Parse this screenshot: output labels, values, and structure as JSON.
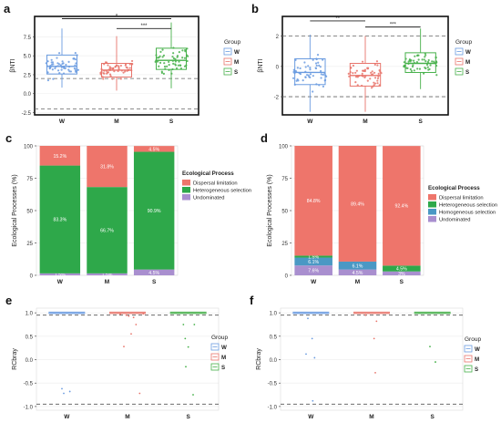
{
  "figure": {
    "title": ""
  },
  "groups": [
    "W",
    "M",
    "S"
  ],
  "colors": {
    "W": "#6a9be0",
    "M": "#e8746b",
    "S": "#46b04a",
    "dispersal": "#ee756b",
    "hetero": "#2ea84a",
    "homo": "#4a98c4",
    "undominated": "#a98fcf",
    "fig_bg": "#ffffff"
  },
  "chart_data": [
    {
      "panel": "a",
      "type": "box",
      "ylabel": "βNTI",
      "ylim": [
        -2.8,
        10.2
      ],
      "yticks": [
        -2.5,
        0.0,
        2.5,
        5.0,
        7.5
      ],
      "ytick_labels": [
        "-2.5",
        "0.0",
        "2.5",
        "5.0",
        "7.5"
      ],
      "categories": [
        "W",
        "M",
        "S"
      ],
      "refs": [
        2,
        -2
      ],
      "legend_title": "Group",
      "stats": [
        {
          "min": 0.8,
          "q1": 2.6,
          "median": 3.6,
          "q3": 5.1,
          "max": 8.6
        },
        {
          "min": 0.4,
          "q1": 2.2,
          "median": 3.1,
          "q3": 4.0,
          "max": 7.6
        },
        {
          "min": 0.7,
          "q1": 3.2,
          "median": 4.4,
          "q3": 6.0,
          "max": 9.4
        }
      ],
      "jitter": {
        "n": 55,
        "spread": [
          1.4,
          1.2,
          1.7
        ]
      },
      "sig": [
        {
          "from": 0,
          "to": 2,
          "label": "*",
          "y": 9.9
        },
        {
          "from": 1,
          "to": 2,
          "label": "***",
          "y": 8.6
        }
      ]
    },
    {
      "panel": "b",
      "type": "box",
      "ylabel": "βNTI",
      "ylim": [
        -3.2,
        3.3
      ],
      "yticks": [
        -2,
        0,
        2
      ],
      "ytick_labels": [
        "-2",
        "0",
        "2"
      ],
      "categories": [
        "W",
        "M",
        "S"
      ],
      "refs": [
        2,
        -2
      ],
      "legend_title": "Group",
      "stats": [
        {
          "min": -3.0,
          "q1": -1.2,
          "median": -0.4,
          "q3": 0.5,
          "max": 2.1
        },
        {
          "min": -3.0,
          "q1": -1.3,
          "median": -0.6,
          "q3": 0.2,
          "max": 2.0
        },
        {
          "min": -1.5,
          "q1": -0.4,
          "median": 0.2,
          "q3": 0.9,
          "max": 2.5
        }
      ],
      "jitter": {
        "n": 55,
        "spread": [
          0.9,
          0.9,
          0.7
        ]
      },
      "sig": [
        {
          "from": 0,
          "to": 1,
          "label": "**",
          "y": 3.0
        },
        {
          "from": 1,
          "to": 2,
          "label": "***",
          "y": 2.6
        }
      ]
    },
    {
      "panel": "c",
      "type": "bar",
      "stacked": true,
      "ylabel": "Ecological Processes (%)",
      "ylim": [
        0,
        100
      ],
      "yticks": [
        0,
        25,
        50,
        75,
        100
      ],
      "ytick_labels": [
        "0",
        "25",
        "50",
        "75",
        "100"
      ],
      "categories": [
        "W",
        "M",
        "S"
      ],
      "legend_title": "Ecological Process",
      "series": [
        {
          "name": "Undominated",
          "values": [
            1.5,
            1.5,
            4.5
          ],
          "labels": [
            "1.5%",
            "1.5%",
            "4.5%"
          ],
          "color_key": "undominated"
        },
        {
          "name": "Heterogeneous selection",
          "values": [
            83.3,
            66.7,
            90.9
          ],
          "labels": [
            "83.3%",
            "66.7%",
            "90.9%"
          ],
          "color_key": "hetero"
        },
        {
          "name": "Dispersal limitation",
          "values": [
            15.2,
            31.8,
            4.5
          ],
          "labels": [
            "15.2%",
            "31.8%",
            "4.5%"
          ],
          "color_key": "dispersal"
        }
      ],
      "legend_order": [
        2,
        1,
        0
      ]
    },
    {
      "panel": "d",
      "type": "bar",
      "stacked": true,
      "ylabel": "Ecological Processes (%)",
      "ylim": [
        0,
        100
      ],
      "yticks": [
        0,
        25,
        50,
        75,
        100
      ],
      "ytick_labels": [
        "0",
        "25",
        "50",
        "75",
        "100"
      ],
      "categories": [
        "W",
        "M",
        "S"
      ],
      "legend_title": "Ecological Process",
      "series": [
        {
          "name": "Undominated",
          "values": [
            7.6,
            4.5,
            3.0
          ],
          "labels": [
            "7.6%",
            "4.5%",
            "3%"
          ],
          "color_key": "undominated"
        },
        {
          "name": "Homogeneous selection",
          "values": [
            6.1,
            6.1,
            0.0
          ],
          "labels": [
            "6.1%",
            "6.1%",
            ""
          ],
          "color_key": "homo"
        },
        {
          "name": "Heterogeneous selection",
          "values": [
            1.5,
            0.0,
            4.5
          ],
          "labels": [
            "1.5%",
            "",
            "4.5%"
          ],
          "color_key": "hetero"
        },
        {
          "name": "Dispersal limitation",
          "values": [
            84.8,
            89.4,
            92.4
          ],
          "labels": [
            "84.8%",
            "89.4%",
            "92.4%"
          ],
          "color_key": "dispersal"
        }
      ],
      "legend_order": [
        3,
        2,
        1,
        0
      ]
    },
    {
      "panel": "e",
      "type": "scatter",
      "ylabel": "RCbray",
      "ylim": [
        -1.08,
        1.1
      ],
      "yticks": [
        -1.0,
        -0.5,
        0.0,
        0.5,
        1.0
      ],
      "ytick_labels": [
        "-1.0",
        "-0.5",
        "0.0",
        "0.5",
        "1.0"
      ],
      "categories": [
        "W",
        "M",
        "S"
      ],
      "refs": [
        0.95,
        -0.95
      ],
      "legend_title": "Group",
      "cluster_y": 1.0,
      "points": [
        [
          [
            -0.08,
            -0.62
          ],
          [
            -0.05,
            -0.72
          ],
          [
            0.05,
            -0.68
          ]
        ],
        [
          [
            -0.12,
            0.97
          ],
          [
            0.02,
            0.93
          ],
          [
            0.1,
            0.9
          ],
          [
            0.14,
            0.75
          ],
          [
            -0.06,
            0.28
          ],
          [
            0.06,
            0.55
          ],
          [
            0.2,
            -0.72
          ],
          [
            0.26,
            0.98
          ],
          [
            -0.02,
            0.95
          ]
        ],
        [
          [
            -0.08,
            0.75
          ],
          [
            0.1,
            0.75
          ],
          [
            -0.05,
            0.45
          ],
          [
            0.0,
            0.27
          ],
          [
            -0.04,
            -0.15
          ],
          [
            0.08,
            -0.75
          ]
        ]
      ]
    },
    {
      "panel": "f",
      "type": "scatter",
      "ylabel": "RCbray",
      "ylim": [
        -1.08,
        1.1
      ],
      "yticks": [
        -1.0,
        -0.5,
        0.0,
        0.5,
        1.0
      ],
      "ytick_labels": [
        "-1.0",
        "-0.5",
        "0.0",
        "0.5",
        "1.0"
      ],
      "categories": [
        "W",
        "M",
        "S"
      ],
      "refs": [
        0.95,
        -0.95
      ],
      "legend_title": "Group",
      "cluster_y": 1.0,
      "points": [
        [
          [
            -0.05,
            0.88
          ],
          [
            0.02,
            0.45
          ],
          [
            -0.08,
            0.12
          ],
          [
            0.06,
            0.04
          ],
          [
            0.03,
            -0.88
          ]
        ],
        [
          [
            -0.1,
            0.95
          ],
          [
            0.08,
            0.82
          ],
          [
            0.04,
            0.45
          ],
          [
            0.06,
            -0.28
          ]
        ],
        [
          [
            -0.04,
            0.28
          ],
          [
            0.05,
            -0.05
          ]
        ]
      ]
    }
  ]
}
